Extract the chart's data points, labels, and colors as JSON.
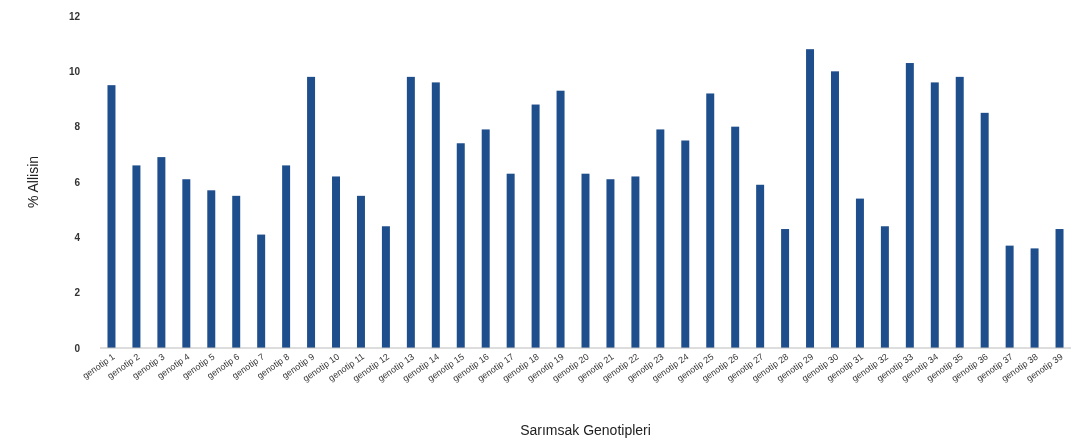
{
  "chart_data": {
    "type": "bar",
    "xlabel": "Sarımsak Genotipleri",
    "ylabel": "% Allisin",
    "categories": [
      "genotip 1",
      "genotip 2",
      "genotip 3",
      "genotip 4",
      "genotip 5",
      "genotip 6",
      "genotip 7",
      "genotip 8",
      "genotip 9",
      "genotip 10",
      "genotip 11",
      "genotip 12",
      "genotip 13",
      "genotip 14",
      "genotip 15",
      "genotip 16",
      "genotip 17",
      "genotip 18",
      "genotip 19",
      "genotip 20",
      "genotip 21",
      "genotip 22",
      "genotip 23",
      "genotip 24",
      "genotip 25",
      "genotip 26",
      "genotip 27",
      "genotip 28",
      "genotip 29",
      "genotip 30",
      "genotip 31",
      "genotip 32",
      "genotip 33",
      "genotip 34",
      "genotip 35",
      "genotip 36",
      "genotip 37",
      "genotip 38",
      "genotip 39"
    ],
    "values": [
      9.5,
      6.6,
      6.9,
      6.1,
      5.7,
      5.5,
      4.1,
      6.6,
      9.8,
      6.2,
      5.5,
      4.4,
      9.8,
      9.6,
      7.4,
      7.9,
      6.3,
      8.8,
      9.3,
      6.3,
      6.1,
      6.2,
      7.9,
      7.5,
      9.2,
      8.0,
      5.9,
      4.3,
      10.8,
      10.0,
      5.4,
      4.4,
      10.3,
      9.6,
      9.8,
      8.5,
      3.7,
      3.6,
      4.3
    ],
    "color": "#1f4e8c",
    "ylim": [
      0,
      12
    ],
    "yticks": [
      0,
      2,
      4,
      6,
      8,
      10,
      12
    ]
  }
}
